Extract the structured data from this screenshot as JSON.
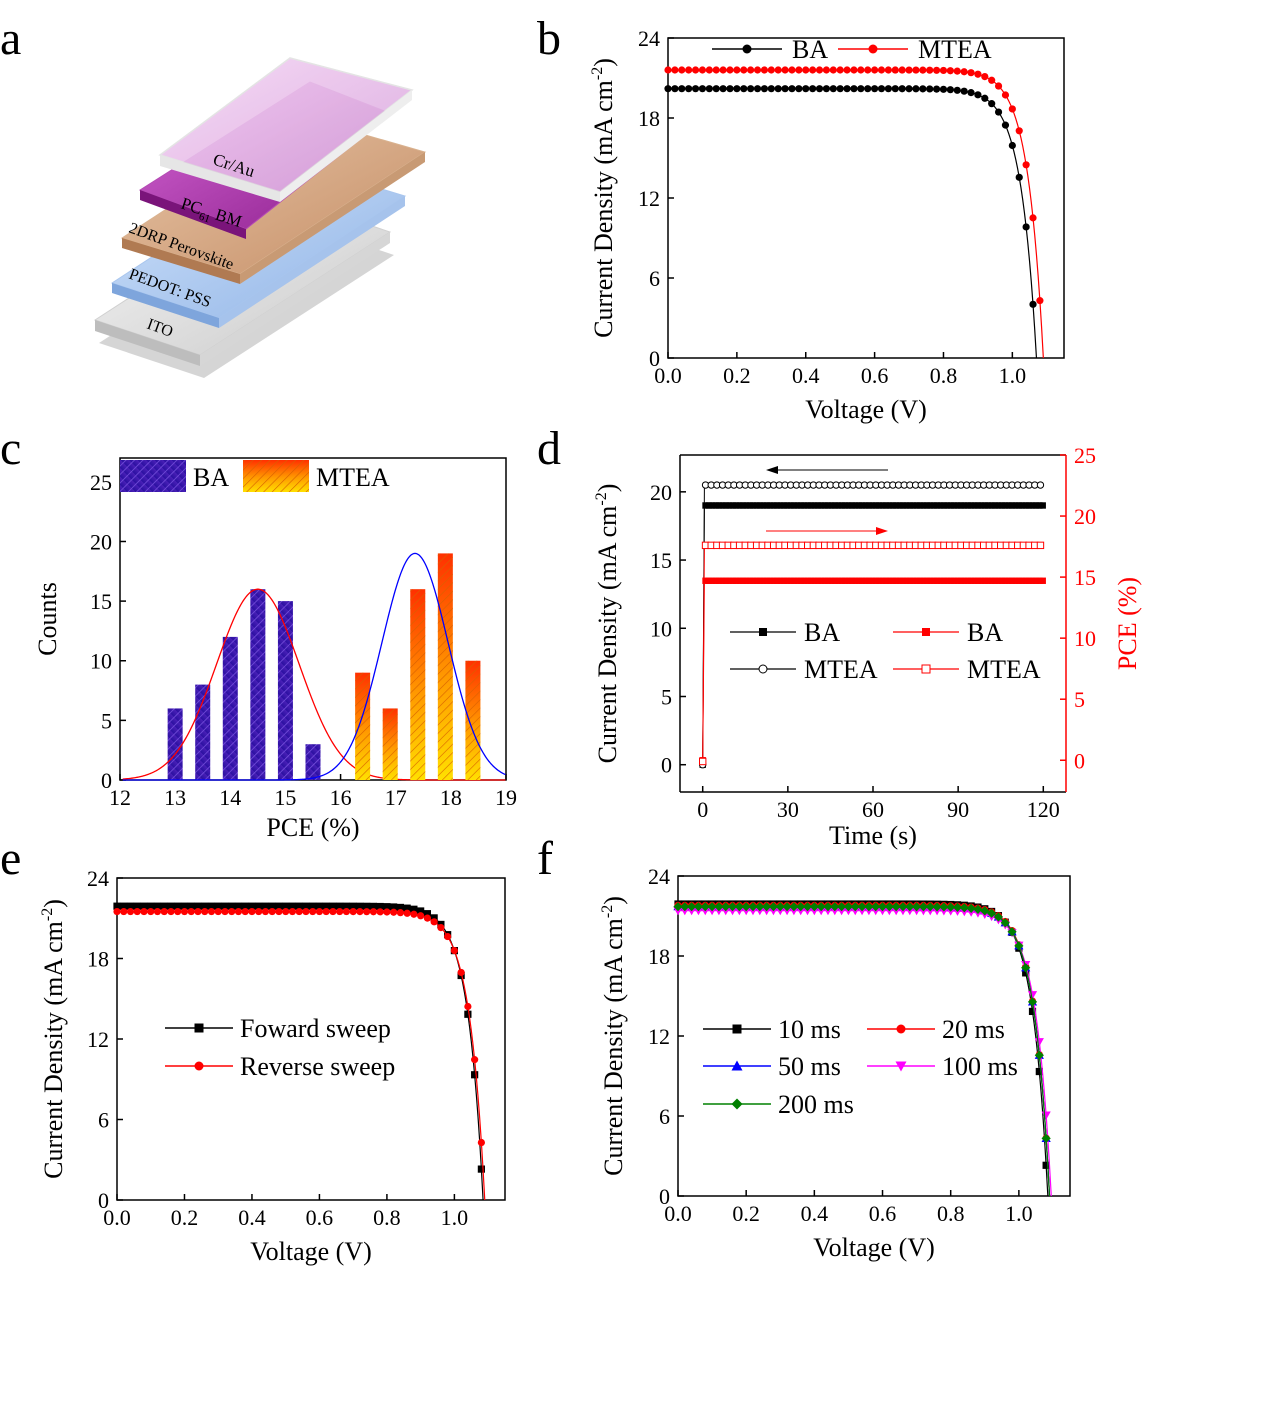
{
  "panel_labels": [
    "a",
    "b",
    "c",
    "d",
    "e",
    "f"
  ],
  "diagram_a": {
    "layers": [
      "Cr/Au",
      "PC61 BM",
      "2DRP Perovskite",
      "PEDOT: PSS",
      "ITO"
    ],
    "pc_main": "PC",
    "pc_sub": "61",
    "pc_tail": " BM"
  },
  "colors": {
    "black": "#000000",
    "red": "#ff0000",
    "blue": "#0000ff",
    "magenta": "#ff00ff",
    "green": "#008000",
    "ba_bar": "#3d1fb0",
    "mtea_bar": "#ff6a00"
  },
  "chart_data": [
    {
      "id": "b",
      "type": "line",
      "xlabel": "Voltage (V)",
      "ylabel": "Current Density (mA cm-2)",
      "ylabel_main": "Current Density (mA cm",
      "ylabel_sup": "-2",
      "ylabel_tail": ")",
      "xlim": [
        0,
        1.15
      ],
      "ylim": [
        0,
        24
      ],
      "xticks": [
        "0.0",
        "0.2",
        "0.4",
        "0.6",
        "0.8",
        "1.0"
      ],
      "yticks": [
        "0",
        "6",
        "12",
        "18",
        "24"
      ],
      "series": [
        {
          "name": "BA",
          "jsc": 20.2,
          "voc": 1.07,
          "color": "#000000",
          "marker": "circle"
        },
        {
          "name": "MTEA",
          "jsc": 21.6,
          "voc": 1.09,
          "color": "#ff0000",
          "marker": "circle"
        }
      ]
    },
    {
      "id": "c",
      "type": "bar",
      "xlabel": "PCE (%)",
      "ylabel": "Counts",
      "xlim": [
        12,
        19
      ],
      "ylim": [
        0,
        27
      ],
      "xticks": [
        "12",
        "13",
        "14",
        "15",
        "16",
        "17",
        "18",
        "19"
      ],
      "yticks": [
        "0",
        "5",
        "10",
        "15",
        "20",
        "25"
      ],
      "series": [
        {
          "name": "BA",
          "x": [
            13.0,
            13.5,
            14.0,
            14.5,
            15.0,
            15.5
          ],
          "values": [
            6,
            8,
            12,
            16,
            15,
            3
          ],
          "fit": {
            "mean": 14.5,
            "sd": 0.75,
            "peak": 16
          },
          "fit_color": "#ff0000"
        },
        {
          "name": "MTEA",
          "x": [
            16.4,
            16.9,
            17.4,
            17.9,
            18.4
          ],
          "values": [
            9,
            6,
            16,
            19,
            10
          ],
          "fit": {
            "mean": 17.35,
            "sd": 0.6,
            "peak": 19
          },
          "fit_color": "#0000ff"
        }
      ]
    },
    {
      "id": "d",
      "type": "scatter",
      "xlabel": "Time (s)",
      "ylabel": "Current Density (mA cm-2)",
      "ylabel_main": "Current Density (mA cm",
      "ylabel_sup": "-2",
      "ylabel_tail": ")",
      "y2label": "PCE (%)",
      "xlim": [
        -8,
        128
      ],
      "ylim": [
        -2,
        22.7
      ],
      "y2lim": [
        -2.6,
        25
      ],
      "xticks": [
        "0",
        "30",
        "60",
        "90",
        "120"
      ],
      "yticks": [
        "0",
        "5",
        "10",
        "15",
        "20"
      ],
      "y2ticks": [
        "0",
        "5",
        "10",
        "15",
        "20",
        "25"
      ],
      "series": [
        {
          "name": "BA",
          "axis": "left",
          "steady": 19.0,
          "start": 0,
          "color": "#000000",
          "marker": "filled-square"
        },
        {
          "name": "MTEA",
          "axis": "left",
          "steady": 20.5,
          "start": 0,
          "color": "#000000",
          "marker": "open-circle"
        },
        {
          "name": "BA",
          "axis": "right",
          "steady": 14.7,
          "start": 0,
          "color": "#ff0000",
          "marker": "filled-square"
        },
        {
          "name": "MTEA",
          "axis": "right",
          "steady": 17.6,
          "start": -0.1,
          "color": "#ff0000",
          "marker": "open-square"
        }
      ]
    },
    {
      "id": "e",
      "type": "line",
      "xlabel": "Voltage (V)",
      "ylabel": "Current Density (mA cm-2)",
      "ylabel_main": "Current Density (mA cm",
      "ylabel_sup": "-2",
      "ylabel_tail": ")",
      "xlim": [
        0,
        1.15
      ],
      "ylim": [
        0,
        24
      ],
      "xticks": [
        "0.0",
        "0.2",
        "0.4",
        "0.6",
        "0.8",
        "1.0"
      ],
      "yticks": [
        "0",
        "6",
        "12",
        "18",
        "24"
      ],
      "series": [
        {
          "name": "Foward sweep",
          "jsc": 21.9,
          "voc": 1.085,
          "color": "#000000",
          "marker": "square"
        },
        {
          "name": "Reverse sweep",
          "jsc": 21.5,
          "voc": 1.09,
          "color": "#ff0000",
          "marker": "circle"
        }
      ]
    },
    {
      "id": "f",
      "type": "line",
      "xlabel": "Voltage (V)",
      "ylabel": "Current Density (mA cm-2)",
      "ylabel_main": "Current Density (mA cm",
      "ylabel_sup": "-2",
      "ylabel_tail": ")",
      "xlim": [
        0,
        1.15
      ],
      "ylim": [
        0,
        24
      ],
      "xticks": [
        "0.0",
        "0.2",
        "0.4",
        "0.6",
        "0.8",
        "1.0"
      ],
      "yticks": [
        "0",
        "6",
        "12",
        "18",
        "24"
      ],
      "series": [
        {
          "name": "10 ms",
          "jsc": 21.9,
          "voc": 1.085,
          "color": "#000000",
          "marker": "square"
        },
        {
          "name": "20 ms",
          "jsc": 21.8,
          "voc": 1.09,
          "color": "#ff0000",
          "marker": "circle"
        },
        {
          "name": "50 ms",
          "jsc": 21.7,
          "voc": 1.09,
          "color": "#0000ff",
          "marker": "triangle-up"
        },
        {
          "name": "100 ms",
          "jsc": 21.4,
          "voc": 1.095,
          "color": "#ff00ff",
          "marker": "triangle-down"
        },
        {
          "name": "200 ms",
          "jsc": 21.7,
          "voc": 1.09,
          "color": "#008000",
          "marker": "diamond"
        }
      ]
    }
  ]
}
